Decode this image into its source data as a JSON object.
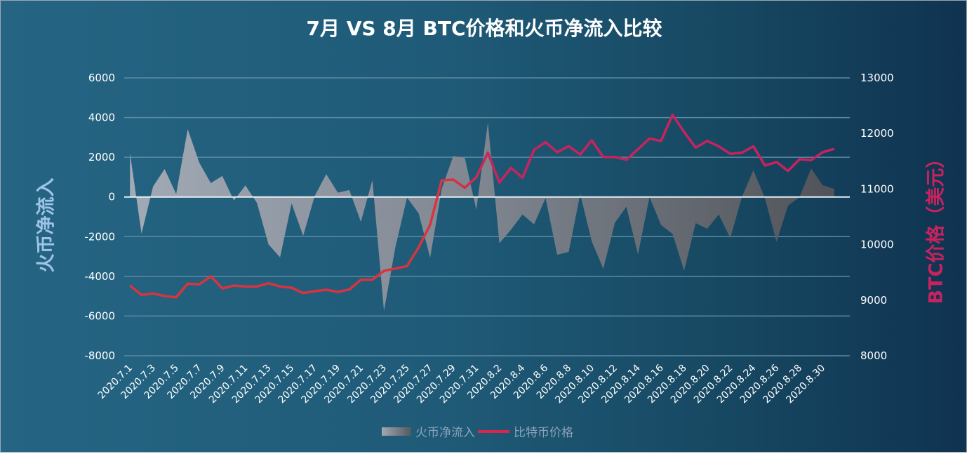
{
  "title": "7月 VS 8月 BTC价格和火币净流入比较",
  "chart_data": {
    "type": "area+line",
    "title": "7月 VS 8月 BTC价格和火币净流入比较",
    "ylabel_left": "火币净流入",
    "ylabel_right": "BTC价格（美元）",
    "ylim_left": [
      -8000,
      6000
    ],
    "yticks_left": [
      "6000",
      "4000",
      "2000",
      "0",
      "-2000",
      "-4000",
      "-6000",
      "-8000"
    ],
    "ylim_right": [
      8000,
      13000
    ],
    "yticks_right": [
      "13000",
      "12000",
      "11000",
      "10000",
      "9000",
      "8000"
    ],
    "grid": true,
    "legend_position": "bottom",
    "x": [
      "2020.7.1",
      "2020.7.2",
      "2020.7.3",
      "2020.7.4",
      "2020.7.5",
      "2020.7.6",
      "2020.7.7",
      "2020.7.8",
      "2020.7.9",
      "2020.7.10",
      "2020.7.11",
      "2020.7.12",
      "2020.7.13",
      "2020.7.14",
      "2020.7.15",
      "2020.7.16",
      "2020.7.17",
      "2020.7.18",
      "2020.7.19",
      "2020.7.20",
      "2020.7.21",
      "2020.7.22",
      "2020.7.23",
      "2020.7.24",
      "2020.7.25",
      "2020.7.26",
      "2020.7.27",
      "2020.7.28",
      "2020.7.29",
      "2020.7.30",
      "2020.7.31",
      "2020.8.1",
      "2020.8.2",
      "2020.8.3",
      "2020.8.4",
      "2020.8.5",
      "2020.8.6",
      "2020.8.7",
      "2020.8.8",
      "2020.8.9",
      "2020.8.10",
      "2020.8.11",
      "2020.8.12",
      "2020.8.13",
      "2020.8.14",
      "2020.8.15",
      "2020.8.16",
      "2020.8.17",
      "2020.8.18",
      "2020.8.19",
      "2020.8.20",
      "2020.8.21",
      "2020.8.22",
      "2020.8.23",
      "2020.8.24",
      "2020.8.25",
      "2020.8.26",
      "2020.8.27",
      "2020.8.28",
      "2020.8.29",
      "2020.8.30",
      "2020.8.31"
    ],
    "series": [
      {
        "name": "火币净流入",
        "type": "area",
        "axis": "left",
        "values": [
          2215,
          -1850,
          530,
          1410,
          150,
          3420,
          1730,
          700,
          1060,
          -180,
          580,
          -300,
          -2390,
          -3040,
          -320,
          -1960,
          50,
          1150,
          220,
          350,
          -1250,
          850,
          -5740,
          -2500,
          -30,
          -820,
          -3060,
          400,
          2060,
          1980,
          -650,
          3750,
          -2330,
          -1650,
          -880,
          -1380,
          -50,
          -2910,
          -2770,
          150,
          -2240,
          -3620,
          -1300,
          -490,
          -2890,
          0,
          -1410,
          -1860,
          -3710,
          -1320,
          -1600,
          -880,
          -2070,
          0,
          1350,
          -60,
          -2260,
          -440,
          0,
          1440,
          590,
          410
        ]
      },
      {
        "name": "比特币价格",
        "type": "line",
        "axis": "right",
        "values": [
          9263,
          9095,
          9120,
          9074,
          9052,
          9297,
          9284,
          9431,
          9212,
          9263,
          9246,
          9246,
          9305,
          9246,
          9225,
          9128,
          9162,
          9187,
          9149,
          9191,
          9368,
          9368,
          9528,
          9570,
          9613,
          9949,
          10358,
          11157,
          11170,
          11023,
          11212,
          11654,
          11116,
          11381,
          11204,
          11705,
          11843,
          11663,
          11772,
          11621,
          11877,
          11577,
          11577,
          11527,
          11717,
          11907,
          11865,
          12336,
          12025,
          11747,
          11865,
          11768,
          11634,
          11654,
          11768,
          11423,
          11486,
          11326,
          11537,
          11520,
          11663,
          11722
        ]
      }
    ]
  },
  "colors": {
    "line_start": "#d8343f",
    "line_end": "#c8235e",
    "area_start": "#a2aab6",
    "area_end": "#505359",
    "left_label": "#9dc3e6",
    "right_label": "#c8235e"
  },
  "legend": {
    "area_label": "火币净流入",
    "line_label": "比特币价格"
  }
}
